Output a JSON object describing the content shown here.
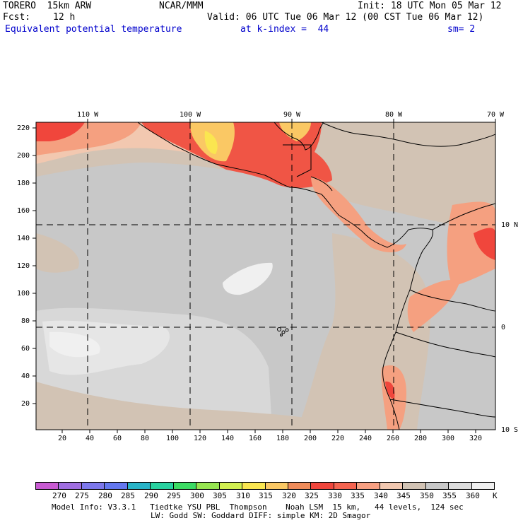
{
  "header": {
    "model_label": "TORERO  15km ARW",
    "org": "NCAR/MMM",
    "init": "Init: 18 UTC Mon 05 Mar 12",
    "fcst_label": "Fcst:",
    "fcst_value": "12 h",
    "valid": "Valid: 06 UTC Tue 06 Mar 12 (00 CST Tue 06 Mar 12)",
    "field_name": "Equivalent potential temperature",
    "level": "at k-index =  44",
    "smoothing": "sm= 2"
  },
  "map": {
    "lon_labels": [
      "110 W",
      "100 W",
      "90 W",
      "80 W",
      "70 W"
    ],
    "lat_labels": [
      "10 N",
      "0",
      "10 S"
    ],
    "y_ticks": [
      "220",
      "200",
      "180",
      "160",
      "140",
      "120",
      "100",
      "80",
      "60",
      "40",
      "20"
    ],
    "x_ticks": [
      "20",
      "40",
      "60",
      "80",
      "100",
      "120",
      "140",
      "160",
      "180",
      "200",
      "220",
      "240",
      "260",
      "280",
      "300",
      "320"
    ]
  },
  "legend": {
    "levels": [
      "270",
      "275",
      "280",
      "285",
      "290",
      "295",
      "300",
      "305",
      "310",
      "315",
      "320",
      "325",
      "330",
      "335",
      "340",
      "345",
      "350",
      "355",
      "360"
    ],
    "unit": "K",
    "colors": [
      "#c85ad2",
      "#a06ee0",
      "#7d78ec",
      "#6478f0",
      "#28b4c8",
      "#28d2a0",
      "#3cdc64",
      "#96e650",
      "#d2f050",
      "#fae650",
      "#fac864",
      "#f08c5a",
      "#f0463c",
      "#f56450",
      "#f8a082",
      "#f2c8b0",
      "#d2c3b4",
      "#c8c8c8",
      "#dcdcdc",
      "#f0f0f0"
    ]
  },
  "footer": {
    "line1": "Model Info: V3.3.1   Tiedtke YSU PBL  Thompson    Noah LSM  15 km,   44 levels,  124 sec",
    "line2": "LW: Godd SW: Goddard DIFF: simple KM: 2D Smagor"
  }
}
